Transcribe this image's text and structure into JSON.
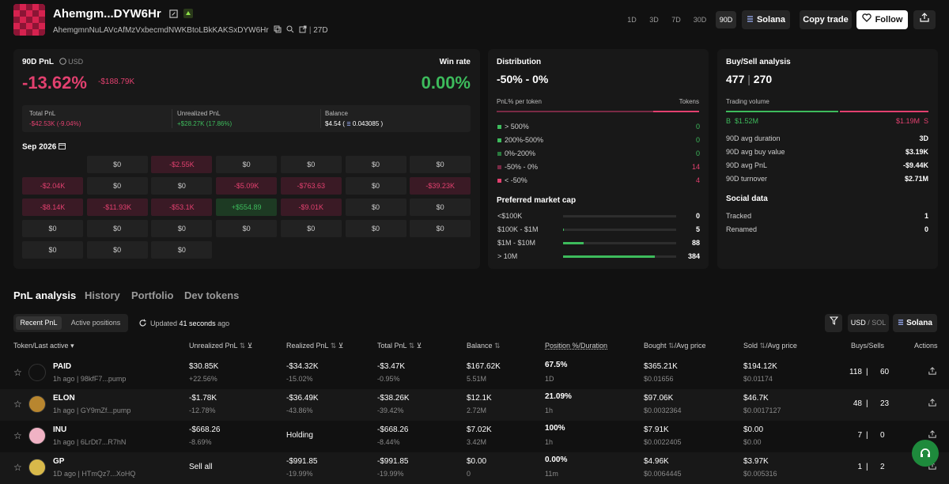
{
  "colors": {
    "green": "#3dbb5c",
    "red": "#e2406f",
    "bg": "#111111",
    "card": "#181818"
  },
  "header": {
    "wallet_name": "Ahemgm...DYW6Hr",
    "address": "AhemgmnNuLAVcAfMzVxbecmdNWKBtoLBkKAKSxDYW6Hr",
    "age": "27D",
    "timeframes": [
      "1D",
      "3D",
      "7D",
      "30D",
      "90D"
    ],
    "active_timeframe": "90D",
    "chain": "Solana",
    "copy_trade": "Copy trade",
    "follow": "Follow"
  },
  "pnl": {
    "title": "90D PnL",
    "currency": "USD",
    "pct": "-13.62%",
    "usd": "-$188.79K",
    "winrate_label": "Win rate",
    "winrate": "0.00%",
    "total_pnl_label": "Total PnL",
    "total_pnl": "-$42.53K (-9.04%)",
    "unrealized_label": "Unrealized PnL",
    "unrealized": "+$28.27K (17.86%)",
    "balance_label": "Balance",
    "balance_usd": "$4.54 (",
    "balance_sol": "0.043085 )",
    "month": "Sep 2026"
  },
  "calendar": [
    [
      "",
      "$0",
      "-$2.55K",
      "$0",
      "$0",
      "$0",
      "$0"
    ],
    [
      "-$2.04K",
      "$0",
      "$0",
      "-$5.09K",
      "-$763.63",
      "$0",
      "-$39.23K"
    ],
    [
      "-$8.14K",
      "-$11.93K",
      "-$53.1K",
      "+$554.89",
      "-$9.01K",
      "$0",
      "$0"
    ],
    [
      "$0",
      "$0",
      "$0",
      "$0",
      "$0",
      "$0",
      "$0"
    ],
    [
      "$0",
      "$0",
      "$0",
      "",
      "",
      "",
      ""
    ]
  ],
  "distribution": {
    "title": "Distribution",
    "range": "-50% - 0%",
    "per_token": "PnL% per token",
    "tokens_label": "Tokens",
    "rows": [
      {
        "label": "> 500%",
        "value": "0"
      },
      {
        "label": "200%-500%",
        "value": "0"
      },
      {
        "label": "0%-200%",
        "value": "0"
      },
      {
        "label": "-50% - 0%",
        "value": "14"
      },
      {
        "label": "< -50%",
        "value": "4"
      }
    ],
    "market_cap_title": "Preferred market cap",
    "market_cap": [
      {
        "label": "<$100K",
        "value": "0",
        "fill": 0
      },
      {
        "label": "$100K - $1M",
        "value": "5",
        "fill": 0.01
      },
      {
        "label": "$1M - $10M",
        "value": "88",
        "fill": 0.18
      },
      {
        "label": "> 10M",
        "value": "384",
        "fill": 0.81
      }
    ]
  },
  "buysell": {
    "title": "Buy/Sell analysis",
    "buys": "477",
    "sells": "270",
    "volume_label": "Trading volume",
    "buy_letter": "B",
    "buy_vol": "$1.52M",
    "sell_vol": "$1.19M",
    "sell_letter": "S",
    "stats": [
      {
        "label": "90D avg duration",
        "value": "3D"
      },
      {
        "label": "90D avg buy value",
        "value": "$3.19K"
      },
      {
        "label": "90D avg PnL",
        "value": "-$9.44K"
      },
      {
        "label": "90D turnover",
        "value": "$2.71M"
      }
    ],
    "social_title": "Social data",
    "social": [
      {
        "label": "Tracked",
        "value": "1"
      },
      {
        "label": "Renamed",
        "value": "0"
      }
    ]
  },
  "tabs": [
    "PnL analysis",
    "History",
    "Portfolio",
    "Dev tokens"
  ],
  "subtabs": [
    "Recent PnL",
    "Active positions"
  ],
  "updated_prefix": "Updated",
  "updated_value": "41 seconds",
  "updated_suffix": "ago",
  "currency_toggle": [
    "USD",
    "/",
    "SOL"
  ],
  "chain_btn": "Solana",
  "columns": [
    "Token/Last active",
    "Unrealized PnL",
    "Realized PnL",
    "Total PnL",
    "Balance",
    "Position %/Duration",
    "Bought",
    "/Avg price",
    "Sold",
    "/Avg price",
    "Buys/Sells",
    "Actions"
  ],
  "rows": [
    {
      "name": "PAID",
      "time": "1h ago",
      "addr": "98kfF7...pump",
      "unreal": "$30.85K",
      "unreal_pct": "+22.56%",
      "real": "-$34.32K",
      "real_pct": "-15.02%",
      "total": "-$3.47K",
      "total_pct": "-0.95%",
      "bal": "$167.62K",
      "bal_sub": "5.51M",
      "pos": "67.5%",
      "dur": "1D",
      "bought": "$365.21K",
      "bought_avg": "$0.01656",
      "sold": "$194.12K",
      "sold_avg": "$0.01174",
      "buys": "118",
      "sells": "60"
    },
    {
      "name": "ELON",
      "time": "1h ago",
      "addr": "GY9mZf...pump",
      "unreal": "-$1.78K",
      "unreal_pct": "-12.78%",
      "real": "-$36.49K",
      "real_pct": "-43.86%",
      "total": "-$38.26K",
      "total_pct": "-39.42%",
      "bal": "$12.1K",
      "bal_sub": "2.72M",
      "pos": "21.09%",
      "dur": "1h",
      "bought": "$97.06K",
      "bought_avg": "$0.0032364",
      "sold": "$46.7K",
      "sold_avg": "$0.0017127",
      "buys": "48",
      "sells": "23"
    },
    {
      "name": "INU",
      "time": "1h ago",
      "addr": "6LrDt7...R7hN",
      "unreal": "-$668.26",
      "unreal_pct": "-8.69%",
      "real": "Holding",
      "real_pct": "",
      "total": "-$668.26",
      "total_pct": "-8.44%",
      "bal": "$7.02K",
      "bal_sub": "3.42M",
      "pos": "100%",
      "dur": "1h",
      "bought": "$7.91K",
      "bought_avg": "$0.0022405",
      "sold": "$0.00",
      "sold_avg": "$0.00",
      "buys": "7",
      "sells": "0"
    },
    {
      "name": "GP",
      "time": "1D ago",
      "addr": "HTmQz7...XoHQ",
      "unreal": "Sell all",
      "unreal_pct": "",
      "real": "-$991.85",
      "real_pct": "-19.99%",
      "total": "-$991.85",
      "total_pct": "-19.99%",
      "bal": "$0.00",
      "bal_sub": "0",
      "pos": "0.00%",
      "dur": "11m",
      "bought": "$4.96K",
      "bought_avg": "$0.0064445",
      "sold": "$3.97K",
      "sold_avg": "$0.005316",
      "buys": "1",
      "sells": "2"
    }
  ]
}
